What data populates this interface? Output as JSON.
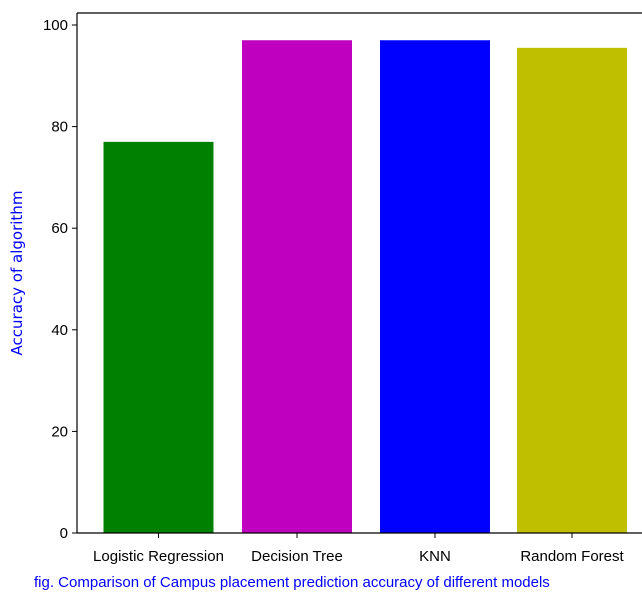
{
  "chart_data": {
    "type": "bar",
    "categories": [
      "Logistic Regression",
      "Decision Tree",
      "KNN",
      "Random Forest"
    ],
    "values": [
      77,
      97,
      97,
      95.5
    ],
    "bar_colors": [
      "#008000",
      "#bf00bf",
      "#0000ff",
      "#bfbf00"
    ],
    "title": "",
    "xlabel": "fig. Comparison of Campus placement prediction accuracy of different models",
    "xlabel_color": "#0000ff",
    "ylabel": "Accuracy of algorithm",
    "ylabel_color": "#0000ff",
    "ylim": [
      0,
      101
    ],
    "yticks": [
      0,
      20,
      40,
      60,
      80,
      100
    ],
    "grid": false,
    "legend": "none"
  }
}
